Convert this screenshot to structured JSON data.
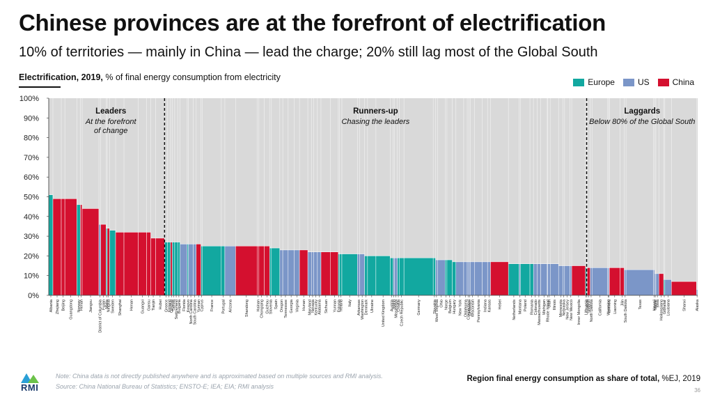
{
  "header": {
    "title": "Chinese provinces are at the forefront of electrification",
    "subtitle": "10% of territories — mainly in China — lead the charge; 20% still lag most of the Global South",
    "chart_label_bold": "Electrification, 2019,",
    "chart_label_rest": " % of final energy consumption from electricity"
  },
  "legend": [
    {
      "name": "Europe",
      "color": "#12a8a0"
    },
    {
      "name": "US",
      "color": "#7b96c8"
    },
    {
      "name": "China",
      "color": "#d4102f"
    }
  ],
  "footer": {
    "note": "Note: China data is not directly published anywhere and is approximated based on multiple sources and RMI analysis.",
    "source": "Source: China National Bureau of Statistics; ENSTO-E; IEA; EIA; RMI analysis",
    "xaxis_bold": "Region final energy consumption as share of total,",
    "xaxis_rest": " %EJ, 2019",
    "page": "36",
    "logo": "RMI"
  },
  "chart_data": {
    "type": "bar",
    "subtype": "variable-width",
    "ylim": [
      0,
      100
    ],
    "ytick_labels": [
      "0%",
      "10%",
      "20%",
      "30%",
      "40%",
      "50%",
      "60%",
      "70%",
      "80%",
      "90%",
      "100%"
    ],
    "grid": false,
    "background_fill": "#d9d9d9",
    "groups": [
      {
        "label": "Leaders",
        "sublabel": "At the forefront\nof change"
      },
      {
        "label": "Runners-up",
        "sublabel": "Chasing the leaders"
      },
      {
        "label": "Laggards",
        "sublabel": "Below 80% of the Global South"
      }
    ],
    "bars": [
      {
        "name": "Albania",
        "v": 51,
        "w": 0.7,
        "r": "Europe"
      },
      {
        "name": "Zhejiang",
        "v": 49,
        "w": 1.4,
        "r": "China"
      },
      {
        "name": "Beijing",
        "v": 49,
        "w": 0.6,
        "r": "China"
      },
      {
        "name": "Guangdong",
        "v": 49,
        "w": 2.0,
        "r": "China"
      },
      {
        "name": "Norway",
        "v": 46,
        "w": 0.6,
        "r": "Europe"
      },
      {
        "name": "Henan",
        "v": 46,
        "w": 0.3,
        "r": "China"
      },
      {
        "name": "Jiangsu",
        "v": 44,
        "w": 2.8,
        "r": "China"
      },
      {
        "name": "District of Columbia",
        "v": 36,
        "w": 0.3,
        "r": "US"
      },
      {
        "name": "Fujian",
        "v": 36,
        "w": 0.9,
        "r": "China"
      },
      {
        "name": "Malta",
        "v": 34,
        "w": 0.2,
        "r": "Europe"
      },
      {
        "name": "Ningxia",
        "v": 34,
        "w": 0.4,
        "r": "China"
      },
      {
        "name": "Sweden",
        "v": 33,
        "w": 1.0,
        "r": "Europe"
      },
      {
        "name": "Shanghai",
        "v": 32,
        "w": 1.4,
        "r": "China"
      },
      {
        "name": "Henan",
        "v": 32,
        "w": 2.4,
        "r": "China"
      },
      {
        "name": "Guangxi",
        "v": 32,
        "w": 1.4,
        "r": "China"
      },
      {
        "name": "Gansu",
        "v": 32,
        "w": 0.7,
        "r": "China"
      },
      {
        "name": "Tianjin",
        "v": 29,
        "w": 0.8,
        "r": "China"
      },
      {
        "name": "Hubei",
        "v": 29,
        "w": 1.5,
        "r": "China"
      },
      {
        "name": "Greece",
        "v": 27,
        "w": 0.5,
        "r": "Europe"
      },
      {
        "name": "Finland",
        "v": 27,
        "w": 0.5,
        "r": "Europe"
      },
      {
        "name": "Qinghai",
        "v": 27,
        "w": 0.3,
        "r": "China"
      },
      {
        "name": "Serbia",
        "v": 27,
        "w": 0.4,
        "r": "Europe"
      },
      {
        "name": "Switzerland",
        "v": 27,
        "w": 0.5,
        "r": "Europe"
      },
      {
        "name": "Bulgaria",
        "v": 27,
        "w": 0.4,
        "r": "Europe"
      },
      {
        "name": "Florida",
        "v": 26,
        "w": 1.2,
        "r": "US"
      },
      {
        "name": "Kosovo",
        "v": 26,
        "w": 0.2,
        "r": "Europe"
      },
      {
        "name": "North Carolina",
        "v": 26,
        "w": 0.8,
        "r": "US"
      },
      {
        "name": "South Carolina",
        "v": 26,
        "w": 0.5,
        "r": "US"
      },
      {
        "name": "Yunnan",
        "v": 26,
        "w": 0.8,
        "r": "China"
      },
      {
        "name": "Cyprus",
        "v": 25,
        "w": 0.2,
        "r": "Europe"
      },
      {
        "name": "France",
        "v": 25,
        "w": 3.2,
        "r": "Europe"
      },
      {
        "name": "Portugal",
        "v": 25,
        "w": 0.6,
        "r": "Europe"
      },
      {
        "name": "Arizona",
        "v": 25,
        "w": 1.8,
        "r": "US"
      },
      {
        "name": "Shandong",
        "v": 25,
        "w": 3.6,
        "r": "China"
      },
      {
        "name": "Hainan",
        "v": 25,
        "w": 0.3,
        "r": "China"
      },
      {
        "name": "Chongqing",
        "v": 25,
        "w": 0.9,
        "r": "China"
      },
      {
        "name": "Guizhou",
        "v": 25,
        "w": 0.9,
        "r": "China"
      },
      {
        "name": "Slovenia",
        "v": 24,
        "w": 0.3,
        "r": "Europe"
      },
      {
        "name": "Spain",
        "v": 24,
        "w": 1.4,
        "r": "Europe"
      },
      {
        "name": "Oregon",
        "v": 23,
        "w": 0.5,
        "r": "US"
      },
      {
        "name": "Tennessee",
        "v": 23,
        "w": 0.9,
        "r": "US"
      },
      {
        "name": "Georgia",
        "v": 23,
        "w": 1.0,
        "r": "US"
      },
      {
        "name": "Virginia",
        "v": 23,
        "w": 0.9,
        "r": "US"
      },
      {
        "name": "Hunan",
        "v": 23,
        "w": 1.4,
        "r": "China"
      },
      {
        "name": "Maryland",
        "v": 22,
        "w": 0.6,
        "r": "US"
      },
      {
        "name": "Nevada",
        "v": 22,
        "w": 0.4,
        "r": "US"
      },
      {
        "name": "Kentucky",
        "v": 22,
        "w": 0.6,
        "r": "US"
      },
      {
        "name": "Alabama",
        "v": 22,
        "w": 0.6,
        "r": "US"
      },
      {
        "name": "Sichuan",
        "v": 22,
        "w": 1.6,
        "r": "China"
      },
      {
        "name": "Yunnan",
        "v": 22,
        "w": 1.3,
        "r": "China"
      },
      {
        "name": "Estonia",
        "v": 21,
        "w": 0.2,
        "r": "Europe"
      },
      {
        "name": "Ireland",
        "v": 21,
        "w": 0.4,
        "r": "Europe"
      },
      {
        "name": "Italy",
        "v": 21,
        "w": 2.6,
        "r": "Europe"
      },
      {
        "name": "Arkansas",
        "v": 21,
        "w": 0.4,
        "r": "US"
      },
      {
        "name": "Washington",
        "v": 21,
        "w": 0.8,
        "r": "US"
      },
      {
        "name": "Denmark",
        "v": 20,
        "w": 0.5,
        "r": "Europe"
      },
      {
        "name": "Ukraine",
        "v": 20,
        "w": 1.4,
        "r": "Europe"
      },
      {
        "name": "United Kingdom",
        "v": 20,
        "w": 2.4,
        "r": "Europe"
      },
      {
        "name": "Austria",
        "v": 19,
        "w": 0.5,
        "r": "Europe"
      },
      {
        "name": "Idaho",
        "v": 19,
        "w": 0.2,
        "r": "US"
      },
      {
        "name": "Mississippi",
        "v": 19,
        "w": 0.5,
        "r": "US"
      },
      {
        "name": "Croatia",
        "v": 19,
        "w": 0.3,
        "r": "Europe"
      },
      {
        "name": "Czech Republic",
        "v": 19,
        "w": 0.8,
        "r": "Europe"
      },
      {
        "name": "Germany",
        "v": 19,
        "w": 4.9,
        "r": "Europe"
      },
      {
        "name": "Slovakia",
        "v": 19,
        "w": 0.4,
        "r": "Europe"
      },
      {
        "name": "West Virginia",
        "v": 18,
        "w": 0.3,
        "r": "US"
      },
      {
        "name": "Ohio",
        "v": 18,
        "w": 1.3,
        "r": "US"
      },
      {
        "name": "Norge",
        "v": 18,
        "w": 0.3,
        "r": "Europe"
      },
      {
        "name": "Belgium",
        "v": 18,
        "w": 0.9,
        "r": "Europe"
      },
      {
        "name": "Hungary",
        "v": 17,
        "w": 0.6,
        "r": "Europe"
      },
      {
        "name": "New York",
        "v": 17,
        "w": 1.3,
        "r": "US"
      },
      {
        "name": "Oklahoma",
        "v": 17,
        "w": 0.6,
        "r": "US"
      },
      {
        "name": "Connecticut",
        "v": 17,
        "w": 0.3,
        "r": "US"
      },
      {
        "name": "Delaware",
        "v": 17,
        "w": 0.2,
        "r": "US"
      },
      {
        "name": "Wisconsin",
        "v": 17,
        "w": 0.7,
        "r": "US"
      },
      {
        "name": "Pennsylvania",
        "v": 17,
        "w": 1.3,
        "r": "US"
      },
      {
        "name": "Indiana",
        "v": 17,
        "w": 0.9,
        "r": "US"
      },
      {
        "name": "Kansas",
        "v": 17,
        "w": 0.5,
        "r": "US"
      },
      {
        "name": "Hebei",
        "v": 17,
        "w": 3.0,
        "r": "China"
      },
      {
        "name": "Netherlands",
        "v": 16,
        "w": 1.8,
        "r": "Europe"
      },
      {
        "name": "Montana",
        "v": 16,
        "w": 0.2,
        "r": "US"
      },
      {
        "name": "Poland",
        "v": 16,
        "w": 1.6,
        "r": "Europe"
      },
      {
        "name": "Romania",
        "v": 16,
        "w": 0.6,
        "r": "Europe"
      },
      {
        "name": "Colorado",
        "v": 16,
        "w": 0.6,
        "r": "US"
      },
      {
        "name": "Massachusetts",
        "v": 16,
        "w": 0.6,
        "r": "US"
      },
      {
        "name": "Michigan",
        "v": 16,
        "w": 1.1,
        "r": "US"
      },
      {
        "name": "Rhode Island",
        "v": 16,
        "w": 0.1,
        "r": "US"
      },
      {
        "name": "Utah",
        "v": 16,
        "w": 0.4,
        "r": "US"
      },
      {
        "name": "Illinois",
        "v": 16,
        "w": 1.4,
        "r": "US"
      },
      {
        "name": "Minnesota",
        "v": 15,
        "w": 0.7,
        "r": "US"
      },
      {
        "name": "Nebraska",
        "v": 15,
        "w": 0.3,
        "r": "US"
      },
      {
        "name": "New Jersey",
        "v": 15,
        "w": 0.9,
        "r": "US"
      },
      {
        "name": "New Mexico",
        "v": 15,
        "w": 0.3,
        "r": "US"
      },
      {
        "name": "Inner Mongolia",
        "v": 15,
        "w": 2.3,
        "r": "China"
      },
      {
        "name": "Lithuania",
        "v": 14,
        "w": 0.2,
        "r": "Europe"
      },
      {
        "name": "Latvia",
        "v": 14,
        "w": 0.1,
        "r": "Europe"
      },
      {
        "name": "Shaanxi",
        "v": 14,
        "w": 0.5,
        "r": "China"
      },
      {
        "name": "North Dakota",
        "v": 14,
        "w": 0.3,
        "r": "US"
      },
      {
        "name": "California",
        "v": 14,
        "w": 2.6,
        "r": "US"
      },
      {
        "name": "Wyoming",
        "v": 14,
        "w": 0.2,
        "r": "US"
      },
      {
        "name": "Vermont",
        "v": 14,
        "w": 0.1,
        "r": "US"
      },
      {
        "name": "Liaoning",
        "v": 14,
        "w": 1.8,
        "r": "China"
      },
      {
        "name": "Jilin",
        "v": 14,
        "w": 0.7,
        "r": "China"
      },
      {
        "name": "South Dakota",
        "v": 13,
        "w": 0.3,
        "r": "US"
      },
      {
        "name": "Texas",
        "v": 13,
        "w": 4.6,
        "r": "US"
      },
      {
        "name": "Hawaii",
        "v": 13,
        "w": 0.2,
        "r": "US"
      },
      {
        "name": "Maine",
        "v": 11,
        "w": 0.2,
        "r": "US"
      },
      {
        "name": "Iowa",
        "v": 11,
        "w": 0.5,
        "r": "US"
      },
      {
        "name": "Heilongjiang",
        "v": 11,
        "w": 0.8,
        "r": "China"
      },
      {
        "name": "Gibraltar",
        "v": 8,
        "w": 0.2,
        "r": "Europe"
      },
      {
        "name": "Louisiana",
        "v": 8,
        "w": 1.1,
        "r": "US"
      },
      {
        "name": "Shanxi",
        "v": 7,
        "w": 4.2,
        "r": "China"
      },
      {
        "name": "Alaska",
        "v": 3,
        "w": 0.2,
        "r": "US"
      }
    ]
  }
}
